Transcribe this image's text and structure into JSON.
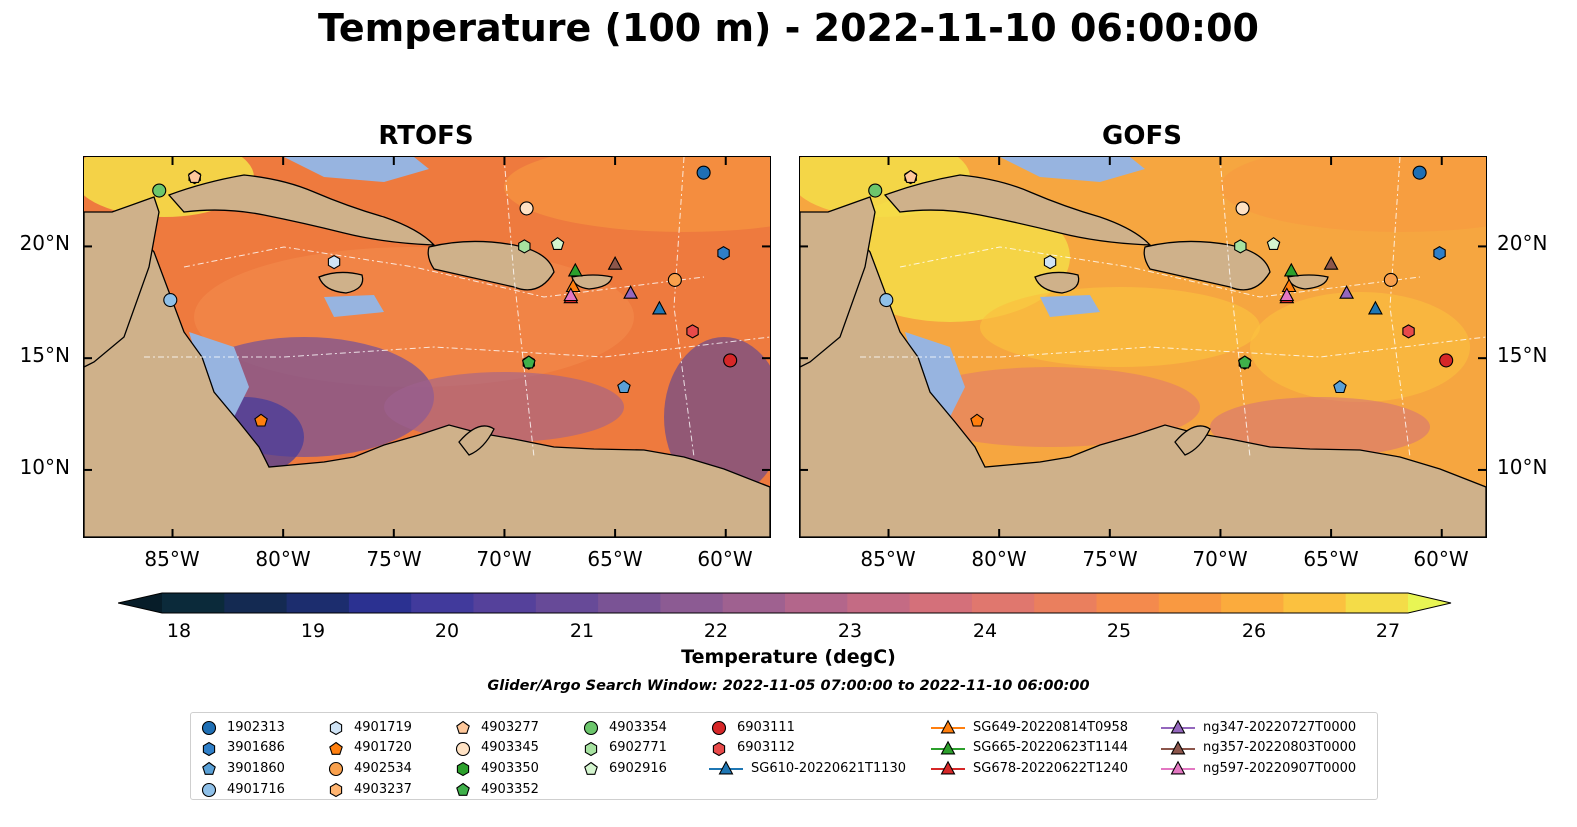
{
  "figure": {
    "title": "Temperature (100 m) - 2022-11-10 06:00:00",
    "search_window": "Glider/Argo Search Window: 2022-11-05 07:00:00 to 2022-11-10 06:00:00"
  },
  "panels": [
    {
      "title": "RTOFS",
      "base_color": "#ee7a3e",
      "warm_zones": 1,
      "cool_zones": 1
    },
    {
      "title": "GOFS",
      "base_color": "#f6a640",
      "warm_zones": 2,
      "cool_zones": 0
    }
  ],
  "axes": {
    "lon_range": [
      -89,
      -58
    ],
    "lat_range": [
      7,
      24
    ],
    "lat_ticks": [
      {
        "value": 10,
        "label": "10°N"
      },
      {
        "value": 15,
        "label": "15°N"
      },
      {
        "value": 20,
        "label": "20°N"
      }
    ],
    "lon_ticks": [
      {
        "value": -85,
        "label": "85°W"
      },
      {
        "value": -80,
        "label": "80°W"
      },
      {
        "value": -75,
        "label": "75°W"
      },
      {
        "value": -70,
        "label": "70°W"
      },
      {
        "value": -65,
        "label": "65°W"
      },
      {
        "value": -60,
        "label": "60°W"
      }
    ]
  },
  "colorbar": {
    "label": "Temperature (degC)",
    "min": 18,
    "max": 27,
    "step": 0.5,
    "ticks": [
      "18",
      "19",
      "20",
      "21",
      "22",
      "23",
      "24",
      "25",
      "26",
      "27"
    ],
    "colors": [
      "#0b2a3a",
      "#142a52",
      "#1c2d6e",
      "#2b3191",
      "#413a9c",
      "#55419b",
      "#674a98",
      "#7a5395",
      "#8c5b93",
      "#9f6190",
      "#b3668b",
      "#c46b84",
      "#d4707a",
      "#e0776e",
      "#ea7f5e",
      "#f48a4d",
      "#f99941",
      "#fbab3d",
      "#fbc13f",
      "#f4dc48"
    ],
    "under_color": "#071d29",
    "over_color": "#e8f554"
  },
  "colors": {
    "land": "#cfb18a",
    "shallow": "#97b4e0",
    "pacific": "#05212f"
  },
  "platforms": [
    {
      "id": "1902313",
      "lon": -61.0,
      "lat": 23.3,
      "marker": "circle",
      "color": "#1f6fb4"
    },
    {
      "id": "3901686",
      "lon": -60.1,
      "lat": 19.7,
      "marker": "hexagon",
      "color": "#2f7fc8"
    },
    {
      "id": "3901860",
      "lon": -64.6,
      "lat": 13.7,
      "marker": "pentagon",
      "color": "#5aa0d6"
    },
    {
      "id": "4901716",
      "lon": -85.1,
      "lat": 17.6,
      "marker": "circle",
      "color": "#8fc0e8"
    },
    {
      "id": "4901719",
      "lon": -77.7,
      "lat": 19.3,
      "marker": "hexagon",
      "color": "#cfe3f5"
    },
    {
      "id": "4901720",
      "lon": -81.0,
      "lat": 12.2,
      "marker": "pentagon",
      "color": "#ff7f0e"
    },
    {
      "id": "4902534",
      "lon": -62.3,
      "lat": 18.5,
      "marker": "circle",
      "color": "#f9a04c"
    },
    {
      "id": "4903237",
      "lon": -84.0,
      "lat": 23.1,
      "marker": "hexagon",
      "color": "#ffb470"
    },
    {
      "id": "4903277",
      "lon": -84.0,
      "lat": 23.1,
      "marker": "pentagon",
      "color": "#ffc89b"
    },
    {
      "id": "4903345",
      "lon": -69.0,
      "lat": 21.7,
      "marker": "circle",
      "color": "#ffe2c4"
    },
    {
      "id": "4903350",
      "lon": -68.9,
      "lat": 14.8,
      "marker": "hexagon",
      "color": "#2ca02c"
    },
    {
      "id": "4903352",
      "lon": -68.9,
      "lat": 14.8,
      "marker": "pentagon",
      "color": "#3fb04a"
    },
    {
      "id": "4903354",
      "lon": -85.6,
      "lat": 22.5,
      "marker": "circle",
      "color": "#6cc66c"
    },
    {
      "id": "6902771",
      "lon": -69.1,
      "lat": 20.0,
      "marker": "hexagon",
      "color": "#a6e2a0"
    },
    {
      "id": "6902916",
      "lon": -67.6,
      "lat": 20.1,
      "marker": "pentagon",
      "color": "#d4f5cf"
    },
    {
      "id": "6903111",
      "lon": -59.8,
      "lat": 14.9,
      "marker": "circle",
      "color": "#d62728"
    },
    {
      "id": "6903112",
      "lon": -61.5,
      "lat": 16.2,
      "marker": "hexagon",
      "color": "#e84a4a"
    },
    {
      "id": "SG610-20220621T1130",
      "lon": -63.0,
      "lat": 17.2,
      "marker": "triangle",
      "color": "#1f77b4",
      "line": true
    },
    {
      "id": "SG649-20220814T0958",
      "lon": -66.9,
      "lat": 18.2,
      "marker": "triangle",
      "color": "#ff7f0e",
      "line": true
    },
    {
      "id": "SG665-20220623T1144",
      "lon": -66.8,
      "lat": 18.9,
      "marker": "triangle",
      "color": "#2ca02c",
      "line": true
    },
    {
      "id": "SG678-20220622T1240",
      "lon": -67.0,
      "lat": 17.7,
      "marker": "triangle",
      "color": "#d62728",
      "line": true
    },
    {
      "id": "ng347-20220727T0000",
      "lon": -64.3,
      "lat": 17.9,
      "marker": "triangle",
      "color": "#9467bd",
      "line": true
    },
    {
      "id": "ng357-20220803T0000",
      "lon": -65.0,
      "lat": 19.2,
      "marker": "triangle",
      "color": "#8c564b",
      "line": true
    },
    {
      "id": "ng597-20220907T0000",
      "lon": -67.0,
      "lat": 17.8,
      "marker": "triangle",
      "color": "#e377c2",
      "line": true
    }
  ]
}
